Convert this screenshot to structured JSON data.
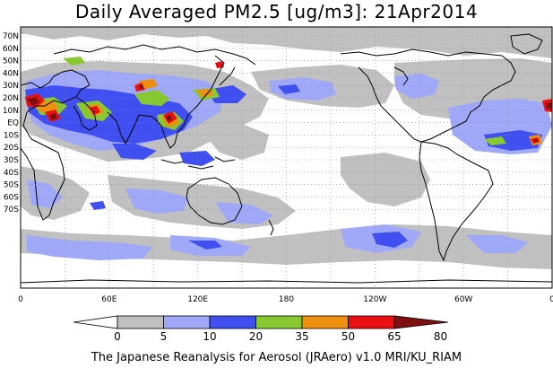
{
  "title": "Daily Averaged PM2.5 [ug/m3]: 21Apr2014",
  "footer": "The Japanese Reanalysis for Aerosol (JRAero) v1.0 MRI/KU_RIAM",
  "map": {
    "lat_labels": [
      "70N",
      "60N",
      "50N",
      "40N",
      "30N",
      "20N",
      "10N",
      "EQ",
      "10S",
      "20S",
      "30S",
      "40S",
      "50S",
      "60S",
      "70S"
    ],
    "lon_labels": [
      "0",
      "60E",
      "120E",
      "180",
      "120W",
      "60W",
      "0"
    ]
  },
  "colorbar": {
    "ticks": [
      "0",
      "5",
      "10",
      "20",
      "35",
      "50",
      "65",
      "80"
    ],
    "colors": [
      "#ffffff",
      "#c0c0c0",
      "#a0a8f8",
      "#4050f0",
      "#88c830",
      "#f09010",
      "#e81010",
      "#801010"
    ]
  }
}
